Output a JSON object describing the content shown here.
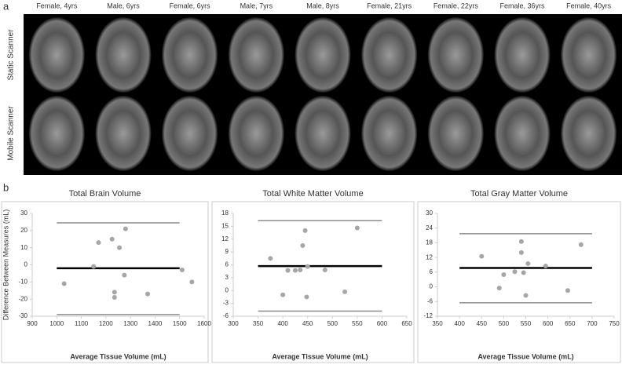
{
  "panel_a": {
    "label": "a",
    "columns": [
      "Female, 4yrs",
      "Male, 6yrs",
      "Female, 6yrs",
      "Male, 7yrs",
      "Male, 8yrs",
      "Female, 21yrs",
      "Female, 22yrs",
      "Female, 36yrs",
      "Female, 40yrs"
    ],
    "rows": [
      "Static Scanner",
      "Mobile Scanner"
    ]
  },
  "panel_b": {
    "label": "b"
  },
  "chart_data": [
    {
      "type": "scatter",
      "title": "Total Brain Volume",
      "x_label": "Average Tissue Volume (mL)",
      "y_label": "Difference Between Measures (mL)",
      "color": "#a6a6a6",
      "line_color": "#000000",
      "limit_color": "#8c8c8c",
      "x": [
        1030,
        1150,
        1170,
        1225,
        1235,
        1235,
        1255,
        1280,
        1275,
        1370,
        1510,
        1550
      ],
      "values": [
        -11,
        -1,
        13,
        15,
        -16,
        -19,
        10,
        21,
        -6,
        -17,
        -3,
        -10
      ],
      "mean": -2,
      "limits": [
        -29,
        24.5
      ],
      "line_xlim": [
        1000,
        1500
      ],
      "xlim": [
        900,
        1600
      ],
      "xticks": [
        900,
        1000,
        1100,
        1200,
        1300,
        1400,
        1500,
        1600
      ],
      "ylim": [
        -30,
        30
      ],
      "yticks": [
        -30,
        -20,
        -10,
        0,
        10,
        20,
        30
      ]
    },
    {
      "type": "scatter",
      "title": "Total White Matter Volume",
      "x_label": "Average Tissue Volume (mL)",
      "color": "#a6a6a6",
      "line_color": "#000000",
      "limit_color": "#8c8c8c",
      "x": [
        375,
        400,
        410,
        425,
        435,
        440,
        445,
        448,
        450,
        485,
        525,
        550
      ],
      "values": [
        7.5,
        -1,
        4.7,
        4.7,
        4.8,
        10.5,
        14,
        -1.5,
        5.6,
        4.8,
        -0.3,
        14.6
      ],
      "mean": 5.7,
      "limits": [
        -4.8,
        16.3
      ],
      "line_xlim": [
        350,
        600
      ],
      "xlim": [
        300,
        650
      ],
      "xticks": [
        300,
        350,
        400,
        450,
        500,
        550,
        600,
        650
      ],
      "ylim": [
        -6,
        18
      ],
      "yticks": [
        -6,
        -3,
        0,
        3,
        6,
        9,
        12,
        15,
        18
      ]
    },
    {
      "type": "scatter",
      "title": "Total Gray Matter Volume",
      "x_label": "Average Tissue Volume (mL)",
      "color": "#a6a6a6",
      "line_color": "#000000",
      "limit_color": "#8c8c8c",
      "x": [
        450,
        490,
        500,
        525,
        540,
        540,
        545,
        550,
        555,
        595,
        645,
        675
      ],
      "values": [
        12.5,
        -0.5,
        5,
        6.2,
        14,
        18.5,
        5.8,
        -3.5,
        9.5,
        8.5,
        -1.5,
        17.2
      ],
      "mean": 7.7,
      "limits": [
        -6.5,
        21.7
      ],
      "line_xlim": [
        400,
        700
      ],
      "xlim": [
        350,
        750
      ],
      "xticks": [
        350,
        400,
        450,
        500,
        550,
        600,
        650,
        700,
        750
      ],
      "ylim": [
        -12,
        30
      ],
      "yticks": [
        -12,
        -6,
        0,
        6,
        12,
        18,
        24,
        30
      ]
    }
  ]
}
